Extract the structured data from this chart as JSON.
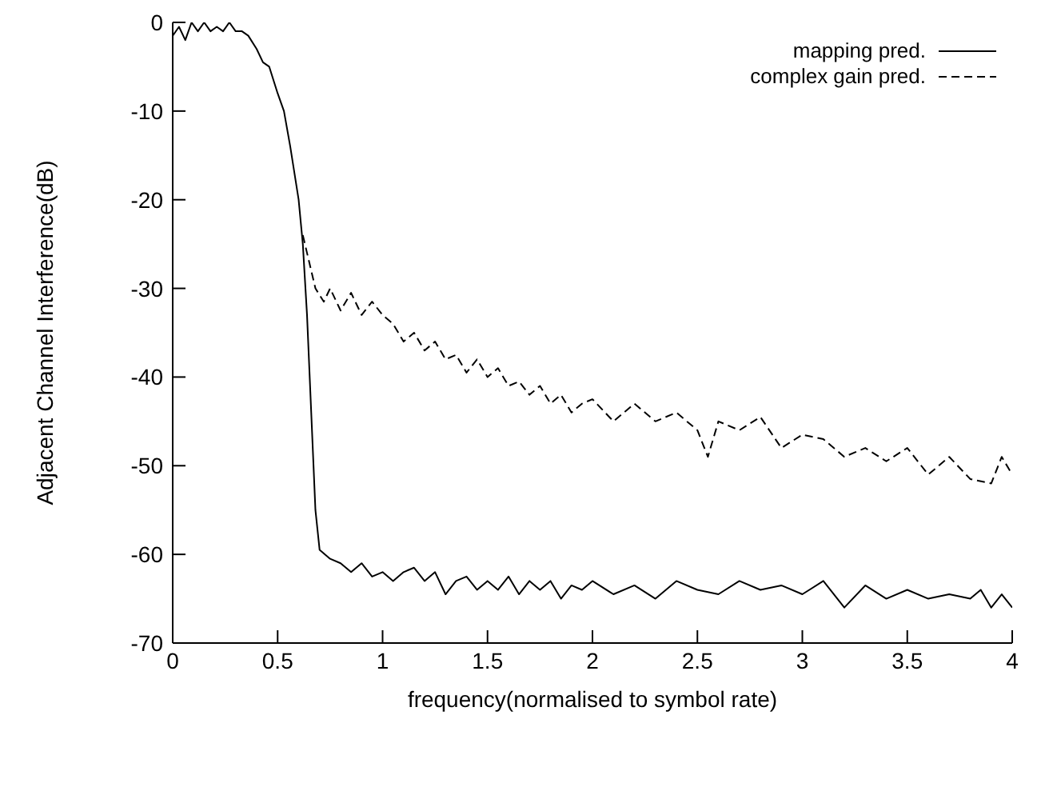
{
  "chart_data": {
    "type": "line",
    "xlabel": "frequency(normalised to symbol rate)",
    "ylabel": "Adjacent Channel Interference(dB)",
    "xlim": [
      0,
      4
    ],
    "xticks": [
      0,
      0.5,
      1,
      1.5,
      2,
      2.5,
      3,
      3.5,
      4
    ],
    "ylim": [
      -70,
      0
    ],
    "yticks": [
      -70,
      -60,
      -50,
      -40,
      -30,
      -20,
      -10,
      0
    ],
    "legend": "top right",
    "marker": "none",
    "series": [
      {
        "name": "mapping pred.",
        "color": "#000000",
        "line_style": "solid",
        "x": [
          0,
          0.03,
          0.06,
          0.09,
          0.12,
          0.15,
          0.18,
          0.21,
          0.24,
          0.27,
          0.3,
          0.33,
          0.36,
          0.4,
          0.43,
          0.46,
          0.5,
          0.53,
          0.56,
          0.6,
          0.62,
          0.64,
          0.66,
          0.68,
          0.7,
          0.75,
          0.8,
          0.85,
          0.9,
          0.95,
          1,
          1.05,
          1.1,
          1.15,
          1.2,
          1.25,
          1.3,
          1.35,
          1.4,
          1.45,
          1.5,
          1.55,
          1.6,
          1.65,
          1.7,
          1.75,
          1.8,
          1.85,
          1.9,
          1.95,
          2,
          2.1,
          2.2,
          2.3,
          2.4,
          2.5,
          2.6,
          2.7,
          2.8,
          2.9,
          3,
          3.1,
          3.2,
          3.3,
          3.4,
          3.5,
          3.6,
          3.7,
          3.8,
          3.85,
          3.9,
          3.95,
          4
        ],
        "values": [
          -1.5,
          -0.5,
          -2,
          0,
          -1,
          0,
          -1,
          -0.5,
          -1,
          0,
          -1,
          -1,
          -1.5,
          -3,
          -4.5,
          -5,
          -8,
          -10,
          -14,
          -20,
          -25,
          -33,
          -44,
          -55,
          -59.5,
          -60.5,
          -61,
          -62,
          -61,
          -62.5,
          -62,
          -63,
          -62,
          -61.5,
          -63,
          -62,
          -64.5,
          -63,
          -62.5,
          -64,
          -63,
          -64,
          -62.5,
          -64.5,
          -63,
          -64,
          -63,
          -65,
          -63.5,
          -64,
          -63,
          -64.5,
          -63.5,
          -65,
          -63,
          -64,
          -64.5,
          -63,
          -64,
          -63.5,
          -64.5,
          -63,
          -66,
          -63.5,
          -65,
          -64,
          -65,
          -64.5,
          -65,
          -64,
          -66,
          -64.5,
          -66
        ]
      },
      {
        "name": "complex gain pred.",
        "color": "#000000",
        "line_style": "dashed",
        "x": [
          0.62,
          0.65,
          0.68,
          0.72,
          0.75,
          0.8,
          0.85,
          0.9,
          0.95,
          1,
          1.05,
          1.1,
          1.15,
          1.2,
          1.25,
          1.3,
          1.35,
          1.4,
          1.45,
          1.5,
          1.55,
          1.6,
          1.65,
          1.7,
          1.75,
          1.8,
          1.85,
          1.9,
          1.95,
          2,
          2.1,
          2.2,
          2.3,
          2.4,
          2.5,
          2.55,
          2.6,
          2.7,
          2.8,
          2.9,
          3,
          3.1,
          3.2,
          3.3,
          3.4,
          3.5,
          3.6,
          3.7,
          3.8,
          3.9,
          3.95,
          4
        ],
        "values": [
          -24,
          -27,
          -30,
          -31.5,
          -30,
          -32.5,
          -30.5,
          -33,
          -31.5,
          -33,
          -34,
          -36,
          -35,
          -37,
          -36,
          -38,
          -37.5,
          -39.5,
          -38,
          -40,
          -39,
          -41,
          -40.5,
          -42,
          -41,
          -43,
          -42,
          -44,
          -43,
          -42.5,
          -45,
          -43,
          -45,
          -44,
          -46,
          -49,
          -45,
          -46,
          -44.5,
          -48,
          -46.5,
          -47,
          -49,
          -48,
          -49.5,
          -48,
          -51,
          -49,
          -51.5,
          -52,
          -49,
          -51
        ]
      }
    ]
  }
}
